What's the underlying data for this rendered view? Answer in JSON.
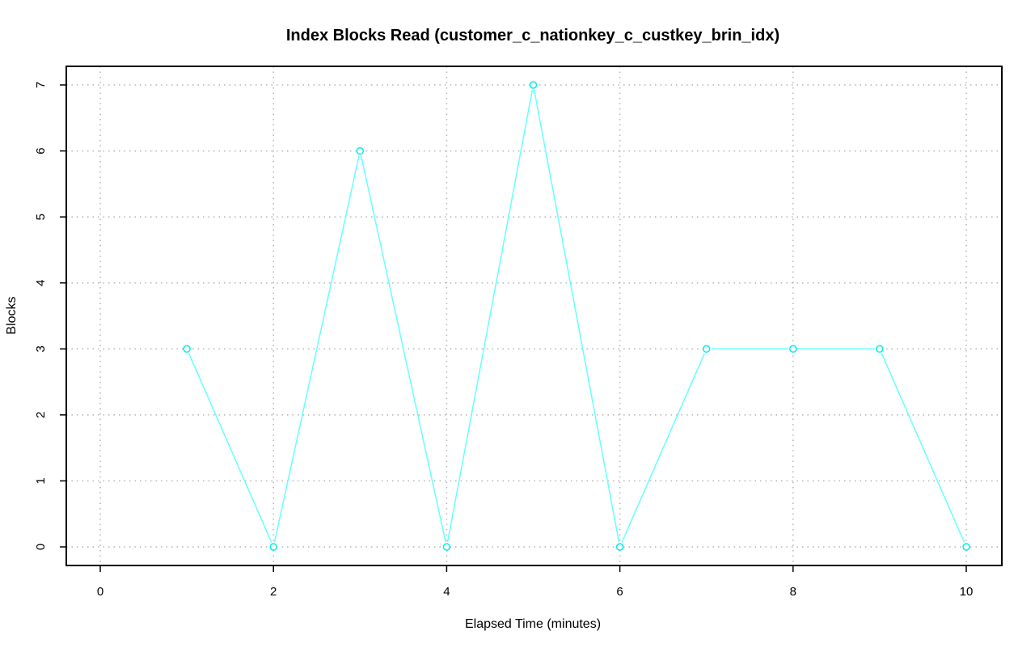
{
  "chart_data": {
    "type": "line",
    "title": "Index Blocks Read (customer_c_nationkey_c_custkey_brin_idx)",
    "xlabel": "Elapsed Time (minutes)",
    "ylabel": "Blocks",
    "x": [
      1,
      2,
      3,
      4,
      5,
      6,
      7,
      8,
      9,
      10
    ],
    "y": [
      3,
      0,
      6,
      0,
      7,
      0,
      3,
      3,
      3,
      0
    ],
    "xlim": [
      0,
      10
    ],
    "ylim": [
      0,
      7
    ],
    "xticks": [
      0,
      2,
      4,
      6,
      8,
      10
    ],
    "yticks": [
      0,
      1,
      2,
      3,
      4,
      5,
      6,
      7
    ],
    "grid": true,
    "line_color": "#66ffff",
    "point_color": "#00eeee",
    "marker": "open-circle"
  }
}
